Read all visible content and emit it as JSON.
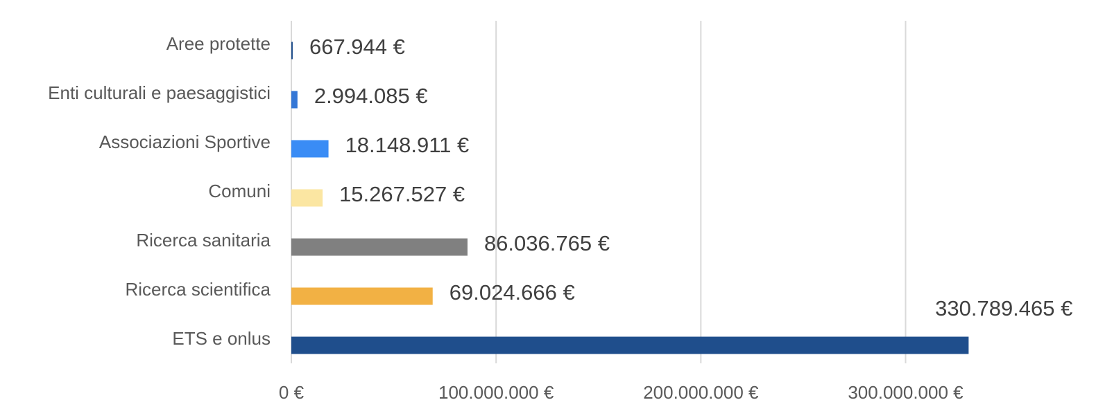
{
  "chart_data": {
    "type": "bar",
    "orientation": "horizontal",
    "categories": [
      "Aree protette",
      "Enti culturali e paesaggistici",
      "Associazioni Sportive",
      "Comuni",
      "Ricerca sanitaria",
      "Ricerca scientifica",
      "ETS  e onlus"
    ],
    "values": [
      667944,
      2994085,
      18148911,
      15267527,
      86036765,
      69024666,
      330789465
    ],
    "value_labels": [
      "667.944 €",
      "2.994.085 €",
      "18.148.911 €",
      "15.267.527 €",
      "86.036.765 €",
      "69.024.666 €",
      "330.789.465 €"
    ],
    "colors": [
      "#1f4e8c",
      "#3477d6",
      "#3a8cf5",
      "#fbe6a2",
      "#808080",
      "#f2b144",
      "#1f4e8c"
    ],
    "x_ticks": [
      0,
      100000000,
      200000000,
      300000000
    ],
    "x_tick_labels": [
      "0 €",
      "100.000.000 €",
      "200.000.000 €",
      "300.000.000 €"
    ],
    "xlim": [
      0,
      393000000
    ],
    "grid": true,
    "title": "",
    "xlabel": "",
    "ylabel": "",
    "legend": "none"
  }
}
